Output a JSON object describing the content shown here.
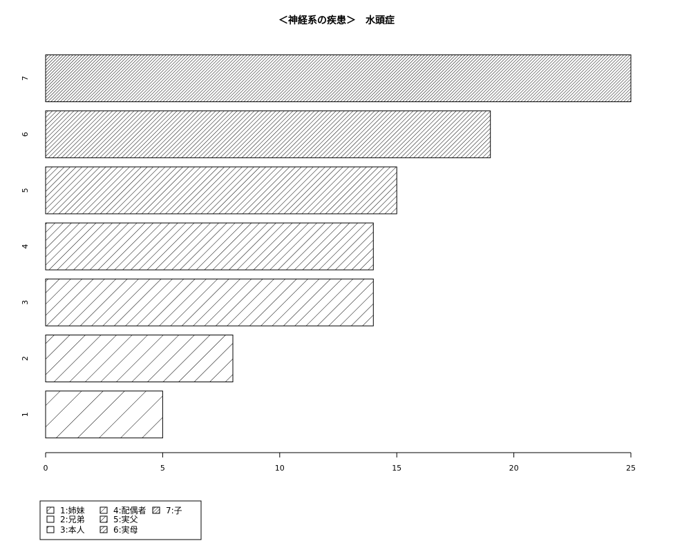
{
  "chart_data": {
    "type": "bar",
    "orientation": "horizontal",
    "title": "＜神経系の疾患＞　水頭症",
    "categories": [
      "1",
      "2",
      "3",
      "4",
      "5",
      "6",
      "7"
    ],
    "values": [
      5,
      8,
      14,
      14,
      15,
      19,
      25
    ],
    "xlim": [
      0,
      25
    ],
    "xticks": [
      0,
      5,
      10,
      15,
      20,
      25
    ],
    "xticklabels": [
      "0",
      "5",
      "10",
      "15",
      "20",
      "25"
    ],
    "fill": "hatched",
    "grid": false,
    "legend": {
      "placement": "bottom-left",
      "entries": [
        "1:姉妹",
        "2:兄弟",
        "3:本人",
        "4:配偶者",
        "5:実父",
        "6:実母",
        "7:子"
      ]
    }
  }
}
